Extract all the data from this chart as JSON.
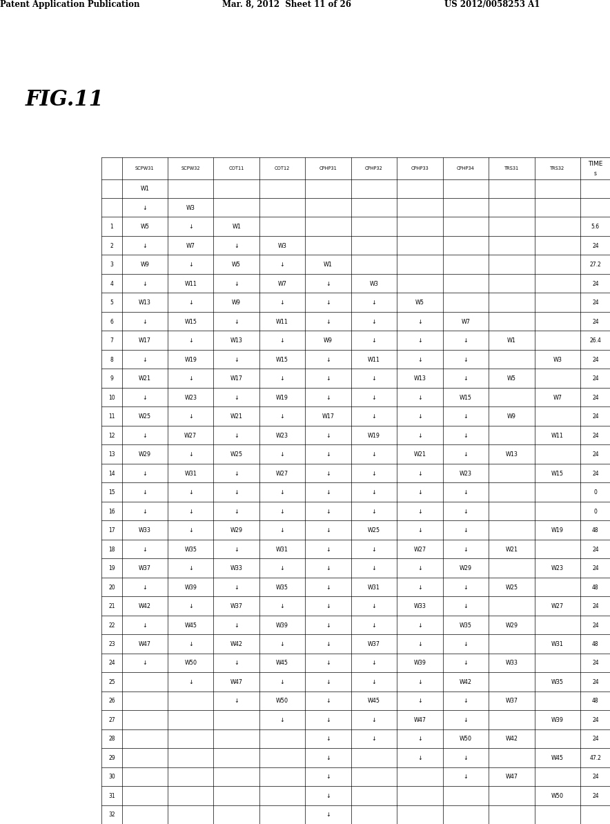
{
  "header_left": "Patent Application Publication",
  "header_mid": "Mar. 8, 2012  Sheet 11 of 26",
  "header_right": "US 2012/0058253 A1",
  "fig_label": "FIG.11",
  "col_headers": [
    "",
    "SCPW31",
    "SCPW32",
    "COT11",
    "COT12",
    "CPHP31",
    "CPHP32",
    "CPHP33",
    "CPHP34",
    "TRS31",
    "TRS32"
  ],
  "all_rows": [
    [
      "",
      "W1",
      "",
      "",
      "",
      "",
      "",
      "",
      "",
      "",
      "",
      ""
    ],
    [
      "",
      "↓",
      "W3",
      "",
      "",
      "",
      "",
      "",
      "",
      "",
      "",
      ""
    ],
    [
      "1",
      "W5",
      "↓",
      "W1",
      "",
      "",
      "",
      "",
      "",
      "",
      "",
      "5.6"
    ],
    [
      "2",
      "↓",
      "W7",
      "↓",
      "W3",
      "",
      "",
      "",
      "",
      "",
      "",
      "24"
    ],
    [
      "3",
      "W9",
      "↓",
      "W5",
      "↓",
      "W1",
      "",
      "",
      "",
      "",
      "",
      "27.2"
    ],
    [
      "4",
      "↓",
      "W11",
      "↓",
      "W7",
      "↓",
      "W3",
      "",
      "",
      "",
      "",
      "24"
    ],
    [
      "5",
      "W13",
      "↓",
      "W9",
      "↓",
      "↓",
      "↓",
      "W5",
      "",
      "",
      "",
      "24"
    ],
    [
      "6",
      "↓",
      "W15",
      "↓",
      "W11",
      "↓",
      "↓",
      "↓",
      "W7",
      "",
      "",
      "24"
    ],
    [
      "7",
      "W17",
      "↓",
      "W13",
      "↓",
      "W9",
      "↓",
      "↓",
      "↓",
      "W1",
      "",
      "26.4"
    ],
    [
      "8",
      "↓",
      "W19",
      "↓",
      "W15",
      "↓",
      "W11",
      "↓",
      "↓",
      "",
      "W3",
      "24"
    ],
    [
      "9",
      "W21",
      "↓",
      "W17",
      "↓",
      "↓",
      "↓",
      "W13",
      "↓",
      "W5",
      "",
      "24"
    ],
    [
      "10",
      "↓",
      "W23",
      "↓",
      "W19",
      "↓",
      "↓",
      "↓",
      "W15",
      "",
      "W7",
      "24"
    ],
    [
      "11",
      "W25",
      "↓",
      "W21",
      "↓",
      "W17",
      "↓",
      "↓",
      "↓",
      "W9",
      "",
      "24"
    ],
    [
      "12",
      "↓",
      "W27",
      "↓",
      "W23",
      "↓",
      "W19",
      "↓",
      "↓",
      "",
      "W11",
      "24"
    ],
    [
      "13",
      "W29",
      "↓",
      "W25",
      "↓",
      "↓",
      "↓",
      "W21",
      "↓",
      "W13",
      "",
      "24"
    ],
    [
      "14",
      "↓",
      "W31",
      "↓",
      "W27",
      "↓",
      "↓",
      "↓",
      "W23",
      "",
      "W15",
      "24"
    ],
    [
      "15",
      "↓",
      "↓",
      "↓",
      "↓",
      "↓",
      "↓",
      "↓",
      "↓",
      "",
      "",
      "0"
    ],
    [
      "16",
      "↓",
      "↓",
      "↓",
      "↓",
      "↓",
      "↓",
      "↓",
      "↓",
      "",
      "",
      "0"
    ],
    [
      "17",
      "W33",
      "↓",
      "W29",
      "↓",
      "↓",
      "W25",
      "↓",
      "↓",
      "",
      "W19",
      "48"
    ],
    [
      "18",
      "↓",
      "W35",
      "↓",
      "W31",
      "↓",
      "↓",
      "W27",
      "↓",
      "W21",
      "",
      "24"
    ],
    [
      "19",
      "W37",
      "↓",
      "W33",
      "↓",
      "↓",
      "↓",
      "↓",
      "W29",
      "",
      "W23",
      "24"
    ],
    [
      "20",
      "↓",
      "W39",
      "↓",
      "W35",
      "↓",
      "W31",
      "↓",
      "↓",
      "W25",
      "",
      "48"
    ],
    [
      "21",
      "W42",
      "↓",
      "W37",
      "↓",
      "↓",
      "↓",
      "W33",
      "↓",
      "",
      "W27",
      "24"
    ],
    [
      "22",
      "↓",
      "W45",
      "↓",
      "W39",
      "↓",
      "↓",
      "↓",
      "W35",
      "W29",
      "",
      "24"
    ],
    [
      "23",
      "W47",
      "↓",
      "W42",
      "↓",
      "↓",
      "W37",
      "↓",
      "↓",
      "",
      "W31",
      "48"
    ],
    [
      "24",
      "↓",
      "W50",
      "↓",
      "W45",
      "↓",
      "↓",
      "W39",
      "↓",
      "W33",
      "",
      "24"
    ],
    [
      "25",
      "",
      "↓",
      "W47",
      "↓",
      "↓",
      "↓",
      "↓",
      "W42",
      "",
      "W35",
      "24"
    ],
    [
      "26",
      "",
      "",
      "↓",
      "W50",
      "↓",
      "W45",
      "↓",
      "↓",
      "W37",
      "",
      "48"
    ],
    [
      "27",
      "",
      "",
      "",
      "↓",
      "↓",
      "↓",
      "W47",
      "↓",
      "",
      "W39",
      "24"
    ],
    [
      "28",
      "",
      "",
      "",
      "",
      "↓",
      "↓",
      "↓",
      "W50",
      "W42",
      "",
      "24"
    ],
    [
      "29",
      "",
      "",
      "",
      "",
      "↓",
      "",
      "↓",
      "↓",
      "",
      "W45",
      "47.2"
    ],
    [
      "30",
      "",
      "",
      "",
      "",
      "↓",
      "",
      "",
      "↓",
      "W47",
      "",
      "24"
    ],
    [
      "31",
      "",
      "",
      "",
      "",
      "↓",
      "",
      "",
      "",
      "",
      "W50",
      "24"
    ],
    [
      "32",
      "",
      "",
      "",
      "",
      "↓",
      "",
      "",
      "",
      "",
      "",
      ""
    ]
  ],
  "bg_color": "#ffffff"
}
